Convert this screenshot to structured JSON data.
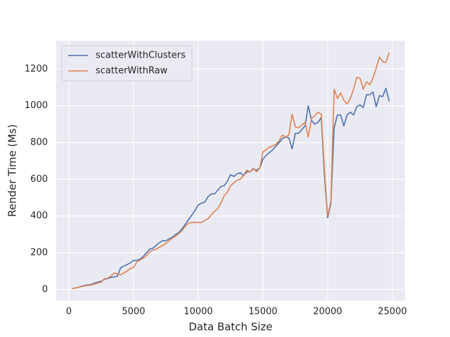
{
  "chart_data": {
    "type": "line",
    "xlabel": "Data Batch Size",
    "ylabel": "Render Time (Ms)",
    "x": [
      250,
      500,
      750,
      1000,
      1250,
      1500,
      1750,
      2000,
      2250,
      2500,
      2750,
      3000,
      3250,
      3500,
      3750,
      4000,
      4250,
      4500,
      4750,
      5000,
      5250,
      5500,
      5750,
      6000,
      6250,
      6500,
      6750,
      7000,
      7250,
      7500,
      7750,
      8000,
      8250,
      8500,
      8750,
      9000,
      9250,
      9500,
      9750,
      10000,
      10250,
      10500,
      10750,
      11000,
      11250,
      11500,
      11750,
      12000,
      12250,
      12500,
      12750,
      13000,
      13250,
      13500,
      13750,
      14000,
      14250,
      14500,
      14750,
      15000,
      15250,
      15500,
      15750,
      16000,
      16250,
      16500,
      16750,
      17000,
      17250,
      17500,
      17750,
      18000,
      18250,
      18500,
      18750,
      19000,
      19250,
      19500,
      19750,
      20000,
      20250,
      20500,
      20750,
      21000,
      21250,
      21500,
      21750,
      22000,
      22250,
      22500,
      22750,
      23000,
      23250,
      23500,
      23750,
      24000,
      24250,
      24500,
      24750
    ],
    "series": [
      {
        "name": "scatterWithClusters",
        "color": "#4c72b0",
        "values": [
          5,
          8,
          12,
          18,
          22,
          25,
          28,
          35,
          40,
          45,
          55,
          60,
          65,
          68,
          72,
          118,
          128,
          135,
          145,
          158,
          158,
          165,
          180,
          200,
          220,
          225,
          240,
          255,
          265,
          265,
          275,
          285,
          300,
          310,
          330,
          355,
          380,
          405,
          430,
          460,
          470,
          475,
          505,
          520,
          520,
          540,
          560,
          565,
          590,
          625,
          615,
          630,
          635,
          620,
          640,
          640,
          655,
          650,
          660,
          710,
          730,
          745,
          760,
          780,
          800,
          820,
          830,
          825,
          765,
          850,
          850,
          870,
          890,
          1000,
          920,
          900,
          910,
          935,
          620,
          390,
          470,
          880,
          950,
          950,
          890,
          950,
          965,
          950,
          995,
          1005,
          990,
          1060,
          1060,
          1075,
          995,
          1055,
          1050,
          1095,
          1025
        ]
      },
      {
        "name": "scatterWithRaw",
        "color": "#dd8452",
        "values": [
          4,
          8,
          12,
          16,
          20,
          22,
          25,
          30,
          35,
          40,
          58,
          62,
          72,
          90,
          85,
          80,
          90,
          100,
          115,
          120,
          150,
          160,
          170,
          185,
          205,
          215,
          220,
          230,
          240,
          250,
          265,
          280,
          290,
          305,
          320,
          345,
          360,
          365,
          365,
          365,
          365,
          375,
          385,
          405,
          425,
          440,
          470,
          510,
          530,
          565,
          580,
          595,
          600,
          620,
          650,
          640,
          660,
          640,
          660,
          750,
          760,
          775,
          780,
          790,
          810,
          840,
          830,
          840,
          955,
          885,
          880,
          895,
          910,
          830,
          930,
          945,
          965,
          955,
          650,
          400,
          480,
          1090,
          1040,
          1070,
          1030,
          1010,
          1040,
          1090,
          1155,
          1150,
          1090,
          1130,
          1115,
          1150,
          1205,
          1265,
          1240,
          1235,
          1290
        ]
      }
    ],
    "xlim": [
      -975,
      25975
    ],
    "ylim": [
      -60,
      1354
    ],
    "xticks": [
      0,
      5000,
      10000,
      15000,
      20000,
      25000
    ],
    "yticks": [
      0,
      200,
      400,
      600,
      800,
      1000,
      1200
    ],
    "grid": true,
    "legend": "upper left",
    "background": "#eaeaf2"
  }
}
